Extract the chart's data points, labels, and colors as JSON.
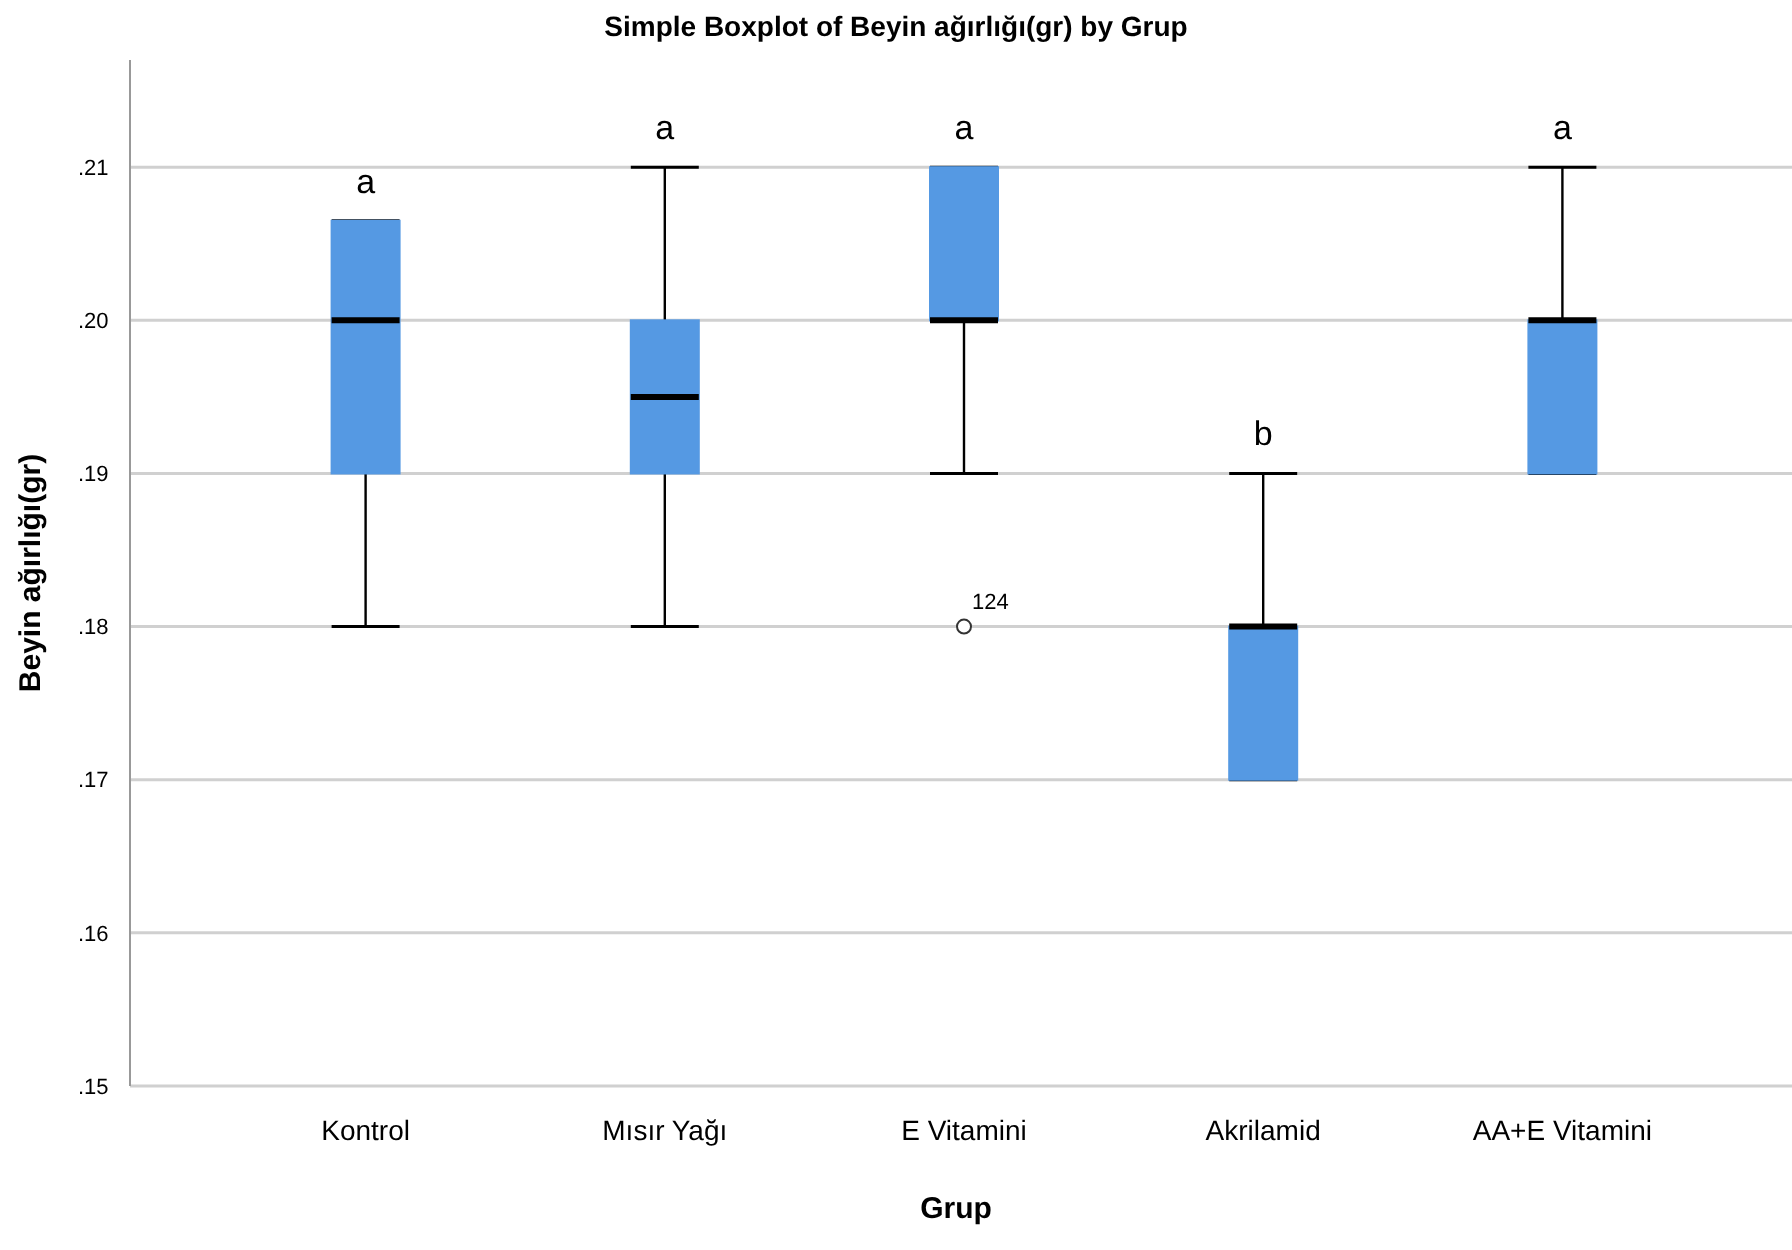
{
  "chart_data": {
    "type": "box",
    "title": "Simple Boxplot of Beyin ağırlığı(gr) by Grup",
    "xlabel": "Grup",
    "ylabel": "Beyin ağırlığı(gr)",
    "categories": [
      "Kontrol",
      "Mısır Yağı",
      "E Vitamini",
      "Akrilamid",
      "AA+E Vitamini"
    ],
    "color": "#5599e3",
    "boxes": [
      {
        "low": 0.18,
        "q1": 0.19,
        "median": 0.2,
        "q3": 0.2065,
        "high": 0.2065
      },
      {
        "low": 0.18,
        "q1": 0.19,
        "median": 0.195,
        "q3": 0.2,
        "high": 0.21
      },
      {
        "low": 0.19,
        "q1": 0.2,
        "median": 0.2,
        "q3": 0.21,
        "high": 0.21,
        "outliers": [
          0.18
        ]
      },
      {
        "low": 0.17,
        "q1": 0.17,
        "median": 0.18,
        "q3": 0.18,
        "high": 0.19
      },
      {
        "low": 0.19,
        "q1": 0.19,
        "median": 0.2,
        "q3": 0.2,
        "high": 0.21
      }
    ],
    "ylim": [
      0.15,
      0.217
    ],
    "yticks": [
      {
        "value": 0.15,
        "label": ".15"
      },
      {
        "value": 0.16,
        "label": ".16"
      },
      {
        "value": 0.17,
        "label": ".17"
      },
      {
        "value": 0.18,
        "label": ".18"
      },
      {
        "value": 0.19,
        "label": ".19"
      },
      {
        "value": 0.2,
        "label": ".20"
      },
      {
        "value": 0.21,
        "label": ".21"
      }
    ],
    "grid": "y",
    "annotations": [
      "a",
      "a",
      "a",
      "b",
      "a",
      "124"
    ]
  }
}
